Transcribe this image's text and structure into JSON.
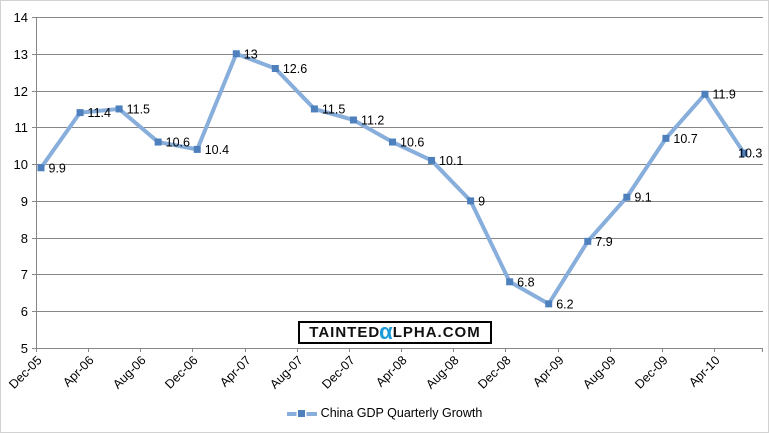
{
  "chart_data": {
    "type": "line",
    "series": [
      {
        "name": "China GDP Quarterly Growth",
        "values": [
          9.9,
          11.4,
          11.5,
          10.6,
          10.4,
          13,
          12.6,
          11.5,
          11.2,
          10.6,
          10.1,
          9,
          6.8,
          6.2,
          7.9,
          9.1,
          10.7,
          11.9,
          10.3
        ],
        "point_labels": [
          "9.9",
          "11.4",
          "11.5",
          "10.6",
          "10.4",
          "13",
          "12.6",
          "11.5",
          "11.2",
          "10.6",
          "10.1",
          "9",
          "6.8",
          "6.2",
          "7.9",
          "9.1",
          "10.7",
          "11.9",
          "10.3"
        ]
      }
    ],
    "x_tick_labels": [
      "Dec-05",
      "Apr-06",
      "Aug-06",
      "Dec-06",
      "Apr-07",
      "Aug-07",
      "Dec-07",
      "Apr-08",
      "Aug-08",
      "Dec-08",
      "Apr-09",
      "Aug-09",
      "Dec-09",
      "Apr-10"
    ],
    "y_tick_labels": [
      "5",
      "6",
      "7",
      "8",
      "9",
      "10",
      "11",
      "12",
      "13",
      "14"
    ],
    "ylim": [
      5,
      14
    ],
    "grid": true,
    "legend_position": "bottom",
    "title": "",
    "xlabel": "",
    "ylabel": "",
    "colors": {
      "line": "#88AEDC",
      "marker": "#4E80BD",
      "grid": "#868686",
      "axis": "#868686",
      "text": "#000000"
    }
  },
  "legend": {
    "label": "China GDP Quarterly Growth"
  },
  "watermark": {
    "prefix": "TAINTED",
    "alpha_char": "α",
    "suffix": "LPHA.COM",
    "alpha_color": "#1B9BD8"
  }
}
